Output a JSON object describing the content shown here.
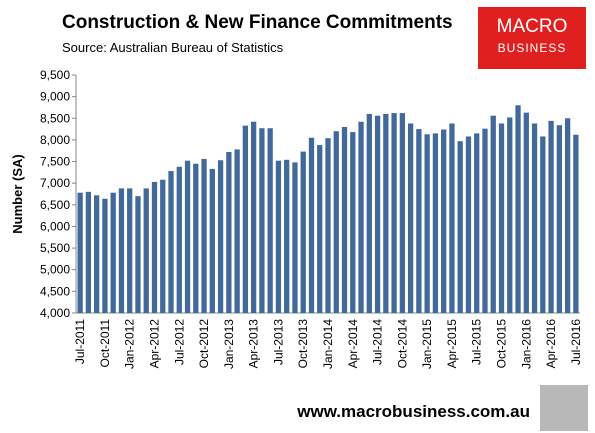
{
  "chart_data": {
    "type": "bar",
    "title": "Construction & New Finance Commitments",
    "subtitle": "Source: Australian Bureau of Statistics",
    "y_label": "Number (SA)",
    "categories": [
      "Jul-2011",
      null,
      null,
      "Oct-2011",
      null,
      null,
      "Jan-2012",
      null,
      null,
      "Apr-2012",
      null,
      null,
      "Jul-2012",
      null,
      null,
      "Oct-2012",
      null,
      null,
      "Jan-2013",
      null,
      null,
      "Apr-2013",
      null,
      null,
      "Jul-2013",
      null,
      null,
      "Oct-2013",
      null,
      null,
      "Jan-2014",
      null,
      null,
      "Apr-2014",
      null,
      null,
      "Jul-2014",
      null,
      null,
      "Oct-2014",
      null,
      null,
      "Jan-2015",
      null,
      null,
      "Apr-2015",
      null,
      null,
      "Jul-2015",
      null,
      null,
      "Oct-2015",
      null,
      null,
      "Jan-2016",
      null,
      null,
      "Apr-2016",
      null,
      null,
      "Jul-2016"
    ],
    "values": [
      6780,
      6800,
      6720,
      6640,
      6780,
      6880,
      6880,
      6700,
      6880,
      7030,
      7080,
      7280,
      7380,
      7520,
      7450,
      7560,
      7330,
      7530,
      7720,
      7780,
      8330,
      8420,
      8270,
      8270,
      7520,
      7540,
      7480,
      7730,
      8050,
      7880,
      8040,
      8200,
      8300,
      8180,
      8420,
      8600,
      8560,
      8600,
      8620,
      8620,
      8380,
      8250,
      8130,
      8150,
      8240,
      8380,
      7970,
      8080,
      8150,
      8260,
      8560,
      8380,
      8520,
      8800,
      8630,
      8380,
      8080,
      8440,
      8340,
      8500,
      8120
    ],
    "color": "#41699a",
    "ylim": [
      4000,
      9500
    ],
    "yticks": [
      {
        "value": 4000,
        "label": "4,000"
      },
      {
        "value": 4500,
        "label": "4,500"
      },
      {
        "value": 5000,
        "label": "5,000"
      },
      {
        "value": 5500,
        "label": "5,500"
      },
      {
        "value": 6000,
        "label": "6,000"
      },
      {
        "value": 6500,
        "label": "6,500"
      },
      {
        "value": 7000,
        "label": "7,000"
      },
      {
        "value": 7500,
        "label": "7,500"
      },
      {
        "value": 8000,
        "label": "8,000"
      },
      {
        "value": 8500,
        "label": "8,500"
      },
      {
        "value": 9000,
        "label": "9,000"
      },
      {
        "value": 9500,
        "label": "9,500"
      }
    ],
    "grid": false
  },
  "logo": {
    "line1": "MACRO",
    "line2": "BUSINESS"
  },
  "footer": "www.macrobusiness.com.au"
}
